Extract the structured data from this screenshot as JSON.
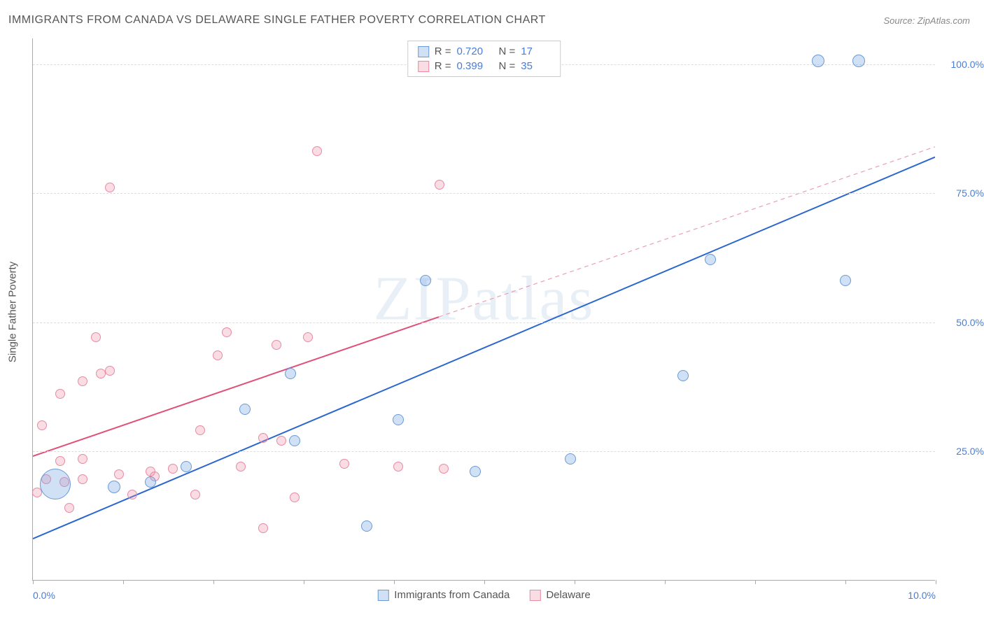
{
  "title": "IMMIGRANTS FROM CANADA VS DELAWARE SINGLE FATHER POVERTY CORRELATION CHART",
  "source": "Source: ZipAtlas.com",
  "watermark": "ZIPatlas",
  "y_axis_label": "Single Father Poverty",
  "chart": {
    "type": "scatter",
    "xlim": [
      0.0,
      10.0
    ],
    "ylim": [
      0.0,
      105.0
    ],
    "x_ticks": [
      0.0,
      1.0,
      2.0,
      3.0,
      4.0,
      5.0,
      6.0,
      7.0,
      8.0,
      9.0,
      10.0
    ],
    "x_tick_labels": {
      "0": "0.0%",
      "10": "10.0%"
    },
    "y_gridlines": [
      25.0,
      50.0,
      75.0,
      100.0
    ],
    "y_tick_labels": [
      "25.0%",
      "50.0%",
      "75.0%",
      "100.0%"
    ],
    "background_color": "#ffffff",
    "grid_color": "#dddddd",
    "axis_color": "#aaaaaa",
    "tick_label_color": "#4a7dd4",
    "series": {
      "canada": {
        "label": "Immigrants from Canada",
        "color_fill": "rgba(120,165,225,0.35)",
        "color_stroke": "#6a9ad8",
        "R": "0.720",
        "N": "17",
        "trend": {
          "x1": 0.0,
          "y1": 8.0,
          "x2": 10.0,
          "y2": 82.0,
          "color": "#2b66d0",
          "width": 2,
          "dash": "none"
        },
        "points": [
          {
            "x": 0.25,
            "y": 18.5,
            "r": 22
          },
          {
            "x": 0.9,
            "y": 18.0,
            "r": 9
          },
          {
            "x": 1.3,
            "y": 19.0,
            "r": 8
          },
          {
            "x": 1.7,
            "y": 22.0,
            "r": 8
          },
          {
            "x": 2.9,
            "y": 27.0,
            "r": 8
          },
          {
            "x": 2.85,
            "y": 40.0,
            "r": 8
          },
          {
            "x": 2.35,
            "y": 33.0,
            "r": 8
          },
          {
            "x": 3.7,
            "y": 10.5,
            "r": 8
          },
          {
            "x": 4.05,
            "y": 31.0,
            "r": 8
          },
          {
            "x": 4.35,
            "y": 58.0,
            "r": 8
          },
          {
            "x": 4.9,
            "y": 21.0,
            "r": 8
          },
          {
            "x": 5.95,
            "y": 23.5,
            "r": 8
          },
          {
            "x": 7.2,
            "y": 39.5,
            "r": 8
          },
          {
            "x": 7.5,
            "y": 62.0,
            "r": 8
          },
          {
            "x": 8.7,
            "y": 100.5,
            "r": 9
          },
          {
            "x": 9.15,
            "y": 100.5,
            "r": 9
          },
          {
            "x": 9.0,
            "y": 58.0,
            "r": 8
          }
        ]
      },
      "delaware": {
        "label": "Delaware",
        "color_fill": "rgba(240,140,165,0.30)",
        "color_stroke": "#e88aa2",
        "R": "0.399",
        "N": "35",
        "trend_solid": {
          "x1": 0.0,
          "y1": 24.0,
          "x2": 4.5,
          "y2": 51.0,
          "color": "#e05078",
          "width": 2
        },
        "trend_dash": {
          "x1": 4.5,
          "y1": 51.0,
          "x2": 10.0,
          "y2": 84.0,
          "color": "#e8a0b0",
          "width": 1.2,
          "dash": "6,5"
        },
        "points": [
          {
            "x": 0.05,
            "y": 17.0,
            "r": 7
          },
          {
            "x": 0.1,
            "y": 30.0,
            "r": 7
          },
          {
            "x": 0.15,
            "y": 19.5,
            "r": 7
          },
          {
            "x": 0.3,
            "y": 36.0,
            "r": 7
          },
          {
            "x": 0.3,
            "y": 23.0,
            "r": 7
          },
          {
            "x": 0.35,
            "y": 19.0,
            "r": 7
          },
          {
            "x": 0.4,
            "y": 14.0,
            "r": 7
          },
          {
            "x": 0.55,
            "y": 19.5,
            "r": 7
          },
          {
            "x": 0.55,
            "y": 23.5,
            "r": 7
          },
          {
            "x": 0.55,
            "y": 38.5,
            "r": 7
          },
          {
            "x": 0.7,
            "y": 47.0,
            "r": 7
          },
          {
            "x": 0.75,
            "y": 40.0,
            "r": 7
          },
          {
            "x": 0.85,
            "y": 40.5,
            "r": 7
          },
          {
            "x": 0.85,
            "y": 76.0,
            "r": 7
          },
          {
            "x": 0.95,
            "y": 20.5,
            "r": 7
          },
          {
            "x": 1.1,
            "y": 16.5,
            "r": 7
          },
          {
            "x": 1.3,
            "y": 21.0,
            "r": 7
          },
          {
            "x": 1.35,
            "y": 20.0,
            "r": 7
          },
          {
            "x": 1.55,
            "y": 21.5,
            "r": 7
          },
          {
            "x": 1.8,
            "y": 16.5,
            "r": 7
          },
          {
            "x": 1.85,
            "y": 29.0,
            "r": 7
          },
          {
            "x": 2.05,
            "y": 43.5,
            "r": 7
          },
          {
            "x": 2.15,
            "y": 48.0,
            "r": 7
          },
          {
            "x": 2.3,
            "y": 22.0,
            "r": 7
          },
          {
            "x": 2.55,
            "y": 10.0,
            "r": 7
          },
          {
            "x": 2.55,
            "y": 27.5,
            "r": 7
          },
          {
            "x": 2.7,
            "y": 45.5,
            "r": 7
          },
          {
            "x": 2.75,
            "y": 27.0,
            "r": 7
          },
          {
            "x": 2.9,
            "y": 16.0,
            "r": 7
          },
          {
            "x": 3.05,
            "y": 47.0,
            "r": 7
          },
          {
            "x": 3.15,
            "y": 83.0,
            "r": 7
          },
          {
            "x": 3.45,
            "y": 22.5,
            "r": 7
          },
          {
            "x": 4.05,
            "y": 22.0,
            "r": 7
          },
          {
            "x": 4.5,
            "y": 76.5,
            "r": 7
          },
          {
            "x": 4.55,
            "y": 21.5,
            "r": 7
          }
        ]
      }
    }
  },
  "legend_top": [
    {
      "swatch_fill": "rgba(120,165,225,0.35)",
      "swatch_stroke": "#6a9ad8",
      "r_label": "R =",
      "r_value": "0.720",
      "n_label": "N =",
      "n_value": "17"
    },
    {
      "swatch_fill": "rgba(240,140,165,0.30)",
      "swatch_stroke": "#e88aa2",
      "r_label": "R =",
      "r_value": "0.399",
      "n_label": "N =",
      "n_value": "35"
    }
  ],
  "legend_bottom": [
    {
      "swatch_fill": "rgba(120,165,225,0.35)",
      "swatch_stroke": "#6a9ad8",
      "label": "Immigrants from Canada"
    },
    {
      "swatch_fill": "rgba(240,140,165,0.30)",
      "swatch_stroke": "#e88aa2",
      "label": "Delaware"
    }
  ]
}
